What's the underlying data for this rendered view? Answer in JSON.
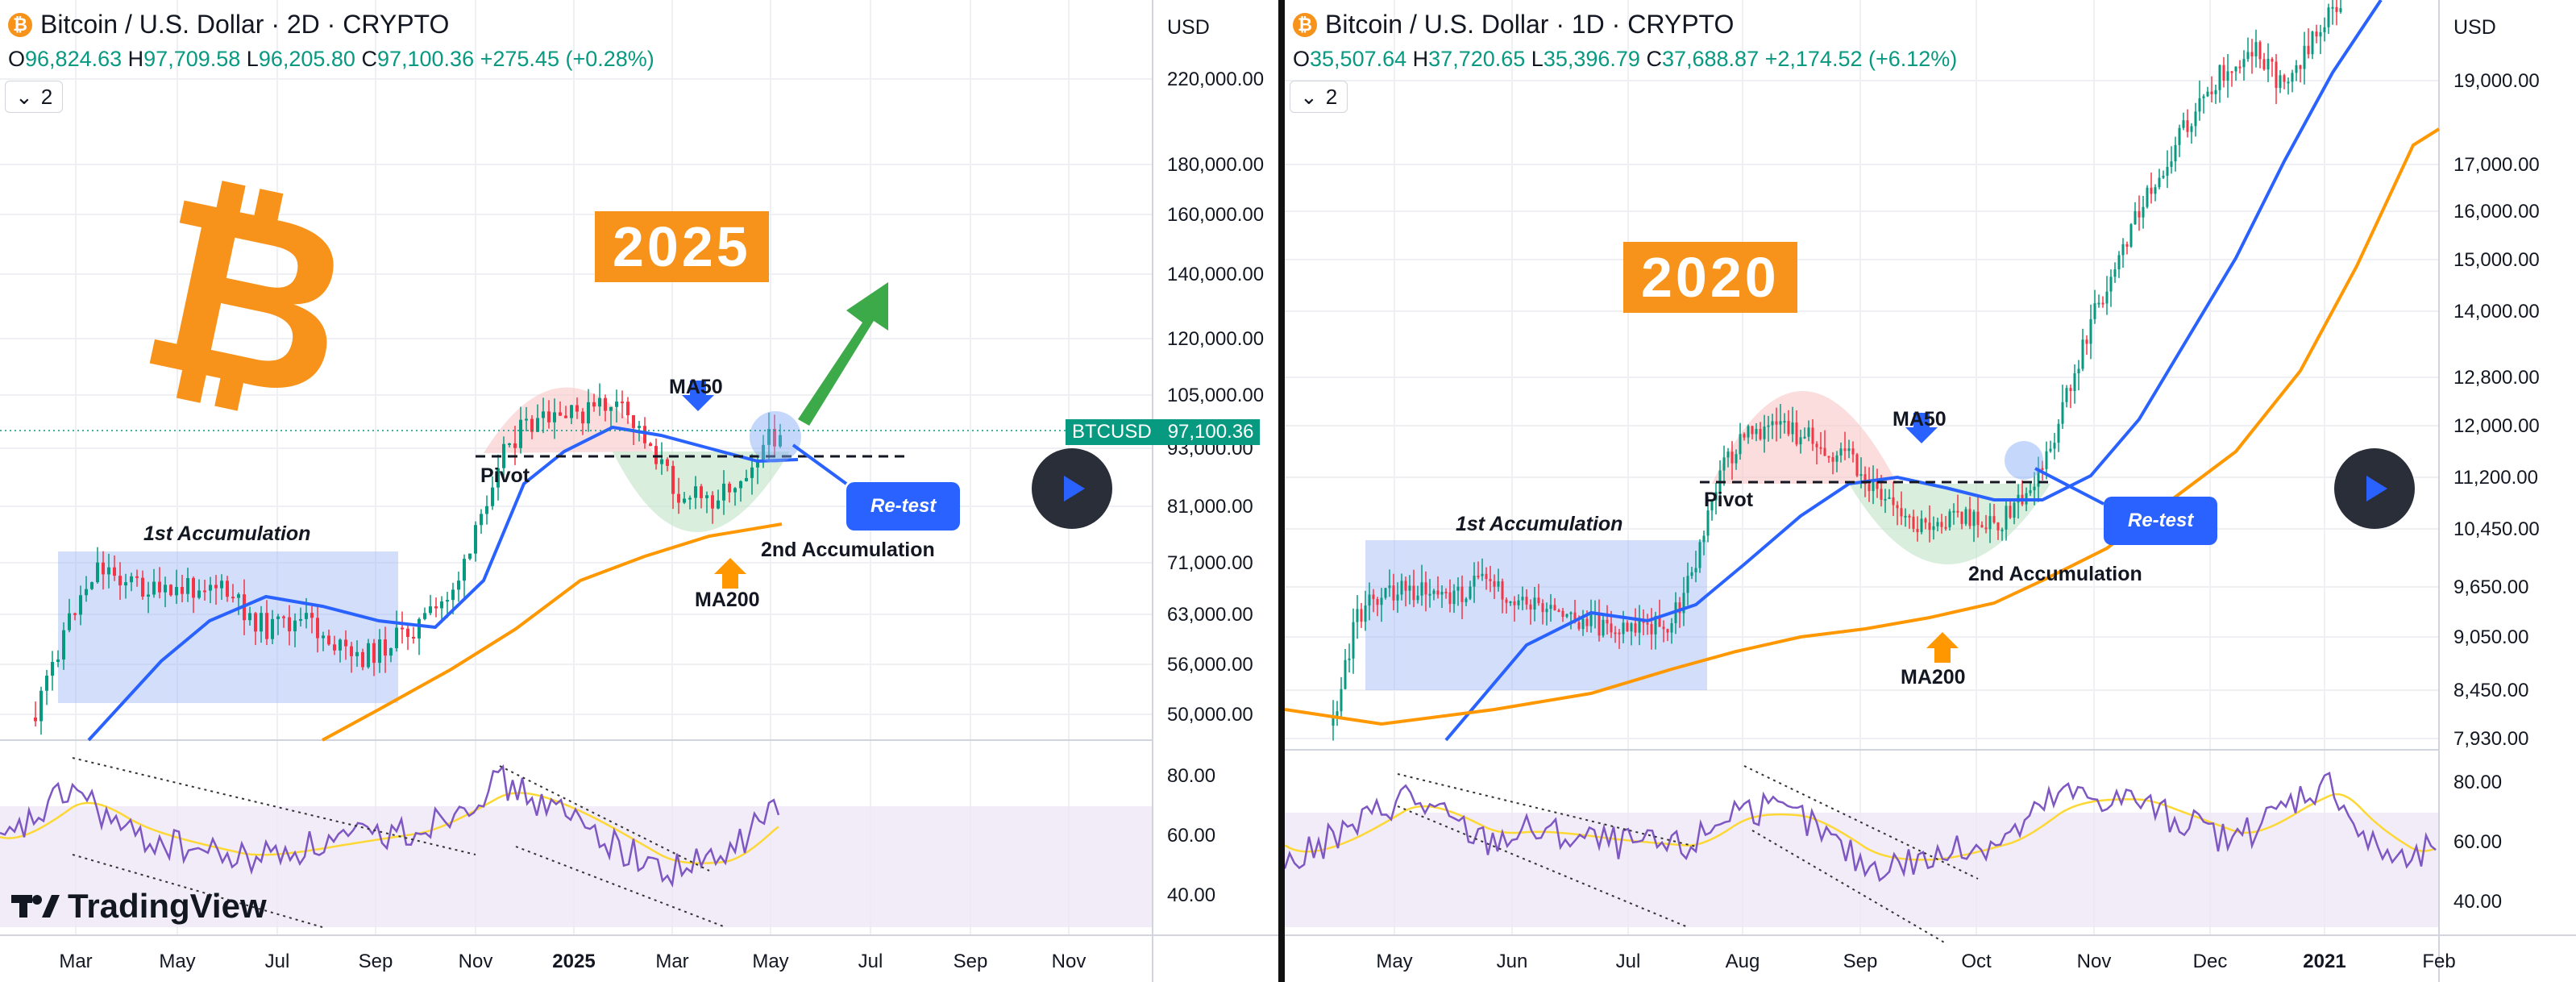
{
  "left": {
    "symbol_title": "Bitcoin / U.S. Dollar · 2D · CRYPTO",
    "btc_glyph": "₿",
    "ohlc": {
      "o_label": "O",
      "o": "96,824.63",
      "h_label": "H",
      "h": "97,709.58",
      "l_label": "L",
      "l": "96,205.80",
      "c_label": "C",
      "c": "97,100.36",
      "change": "+275.45 (+0.28%)"
    },
    "indicators_count": "2",
    "currency": "USD",
    "year_badge": "2025",
    "labels": {
      "ma50": "MA50",
      "ma200": "MA200",
      "pivot": "Pivot",
      "first_acc": "1st Accumulation",
      "second_acc": "2nd Accumulation",
      "retest": "Re-test"
    },
    "price_tag": {
      "symbol": "BTCUSD",
      "price": "97,100.36"
    },
    "logo_text": "TradingView"
  },
  "right": {
    "symbol_title": "Bitcoin / U.S. Dollar · 1D · CRYPTO",
    "ohlc": {
      "o_label": "O",
      "o": "35,507.64",
      "h_label": "H",
      "h": "37,720.65",
      "l_label": "L",
      "l": "35,396.79",
      "c_label": "C",
      "c": "37,688.87",
      "change": "+2,174.52 (+6.12%)"
    },
    "indicators_count": "2",
    "currency": "USD",
    "year_badge": "2020",
    "labels": {
      "ma50": "MA50",
      "ma200": "MA200",
      "pivot": "Pivot",
      "first_acc": "1st Accumulation",
      "second_acc": "2nd Accumulation",
      "retest": "Re-test"
    }
  },
  "colors": {
    "up": "#089981",
    "down": "#f23645",
    "ma50": "#2962ff",
    "ma200": "#ff9800",
    "rsi": "#7e57c2",
    "rsi_ma": "#fdd835",
    "accum_box": "#9db5f5",
    "bitcoin": "#f7931a",
    "arrow_green": "#3daa4a"
  },
  "chart_data": [
    {
      "type": "candlestick",
      "title": "Bitcoin / U.S. Dollar · 2D · CRYPTO",
      "x_ticks": [
        "Mar",
        "May",
        "Jul",
        "Sep",
        "Nov",
        "2025",
        "Mar",
        "May",
        "Jul",
        "Sep",
        "Nov"
      ],
      "y_ticks": [
        "220,000.00",
        "180,000.00",
        "160,000.00",
        "140,000.00",
        "120,000.00",
        "105,000.00",
        "93,000.00",
        "81,000.00",
        "71,000.00",
        "63,000.00",
        "56,000.00",
        "50,000.00"
      ],
      "y_scale": "log",
      "rsi_ticks": [
        "80.00",
        "60.00",
        "40.00"
      ],
      "last_price": "97,100.36",
      "series": [
        {
          "name": "MA50"
        },
        {
          "name": "MA200"
        }
      ],
      "rsi_panel": {
        "ticks": [
          80,
          60,
          40
        ]
      }
    },
    {
      "type": "candlestick",
      "title": "Bitcoin / U.S. Dollar · 1D · CRYPTO",
      "x_ticks": [
        "May",
        "Jun",
        "Jul",
        "Aug",
        "Sep",
        "Oct",
        "Nov",
        "Dec",
        "2021",
        "Feb"
      ],
      "y_ticks": [
        "19,000.00",
        "17,000.00",
        "16,000.00",
        "15,000.00",
        "14,000.00",
        "12,800.00",
        "12,000.00",
        "11,200.00",
        "10,450.00",
        "9,650.00",
        "9,050.00",
        "8,450.00",
        "7,930.00"
      ],
      "y_scale": "log",
      "rsi_ticks": [
        "80.00",
        "60.00",
        "40.00"
      ],
      "series": [
        {
          "name": "MA50"
        },
        {
          "name": "MA200"
        }
      ],
      "rsi_panel": {
        "ticks": [
          80,
          60,
          40
        ]
      }
    }
  ]
}
